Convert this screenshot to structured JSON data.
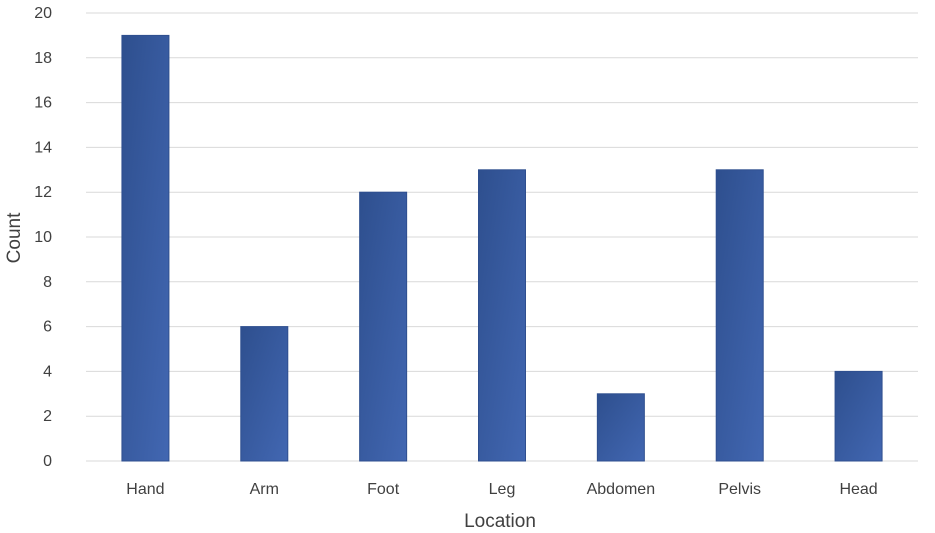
{
  "chart_data": {
    "type": "bar",
    "title": "",
    "xlabel": "Location",
    "ylabel": "Count",
    "categories": [
      "Hand",
      "Arm",
      "Foot",
      "Leg",
      "Abdomen",
      "Pelvis",
      "Head"
    ],
    "values": [
      19,
      6,
      12,
      13,
      3,
      13,
      4
    ],
    "ylim": [
      0,
      20
    ],
    "yticks": [
      0,
      2,
      4,
      6,
      8,
      10,
      12,
      14,
      16,
      18,
      20
    ],
    "grid": true,
    "legend": "none",
    "colors": {
      "bar_top": "#2e4f8e",
      "bar_bottom": "#4267b2",
      "grid": "#d9d9d9",
      "text": "#404040"
    }
  }
}
